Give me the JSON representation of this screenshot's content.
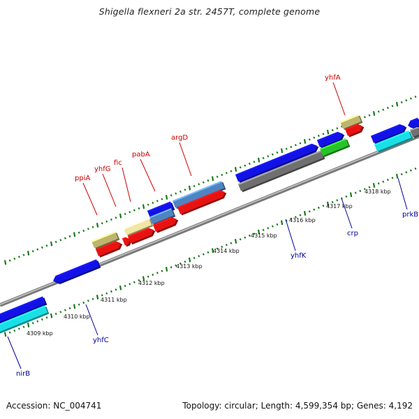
{
  "title": "Shigella flexneri 2a str. 2457T, complete genome",
  "footer": {
    "accession": "Accession: NC_004741",
    "summary": "Topology: circular; Length: 4,599,354 bp; Genes: 4,192"
  },
  "colors": {
    "backbone": "#8c8c8c",
    "tick_dots": "#1a7a1a",
    "upper_label": "#cc0000",
    "lower_label": "#000099",
    "scale_label": "#111111"
  },
  "scale_labels": [
    "4309 kbp",
    "4310 kbp",
    "4311 kbp",
    "4312 kbp",
    "4313 kbp",
    "4314 kbp",
    "4315 kbp",
    "4316 kbp",
    "4317 kbp",
    "4318 kbp"
  ],
  "upper_gene_labels": [
    "ppiA",
    "yhfG",
    "fic",
    "pabA",
    "argD",
    "yhfA"
  ],
  "lower_gene_labels": [
    "nirB",
    "yhfC",
    "yhfK",
    "crp",
    "prkB"
  ]
}
